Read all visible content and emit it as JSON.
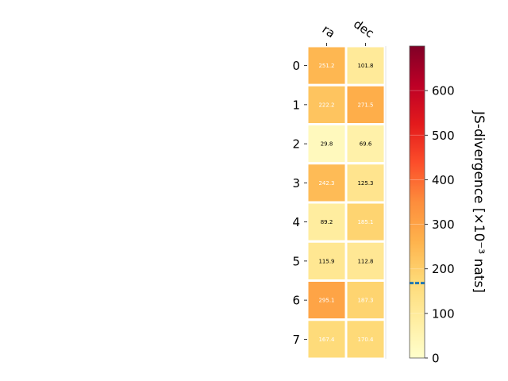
{
  "chart_data": {
    "type": "heatmap",
    "columns": [
      "ra",
      "dec"
    ],
    "rows": [
      "0",
      "1",
      "2",
      "3",
      "4",
      "5",
      "6",
      "7"
    ],
    "values": [
      [
        251.2,
        101.8
      ],
      [
        222.2,
        271.5
      ],
      [
        29.8,
        69.6
      ],
      [
        242.3,
        125.3
      ],
      [
        89.2,
        185.1
      ],
      [
        115.9,
        112.8
      ],
      [
        295.1,
        187.3
      ],
      [
        167.4,
        170.4
      ]
    ],
    "cell_labels": [
      [
        "251.2",
        "101.8"
      ],
      [
        "222.2",
        "271.5"
      ],
      [
        "29.8",
        "69.6"
      ],
      [
        "242.3",
        "125.3"
      ],
      [
        "89.2",
        "185.1"
      ],
      [
        "115.9",
        "112.8"
      ],
      [
        "295.1",
        "187.3"
      ],
      [
        "167.4",
        "170.4"
      ]
    ],
    "colorbar": {
      "label": "JS-divergence [×10⁻³ nats]",
      "range": [
        0,
        700
      ],
      "ticks": [
        0,
        100,
        200,
        300,
        400,
        500,
        600
      ],
      "tick_labels": [
        "0",
        "100",
        "200",
        "300",
        "400",
        "500",
        "600"
      ],
      "colormap": "YlOrRd",
      "threshold_line": 168
    },
    "grid": false
  }
}
